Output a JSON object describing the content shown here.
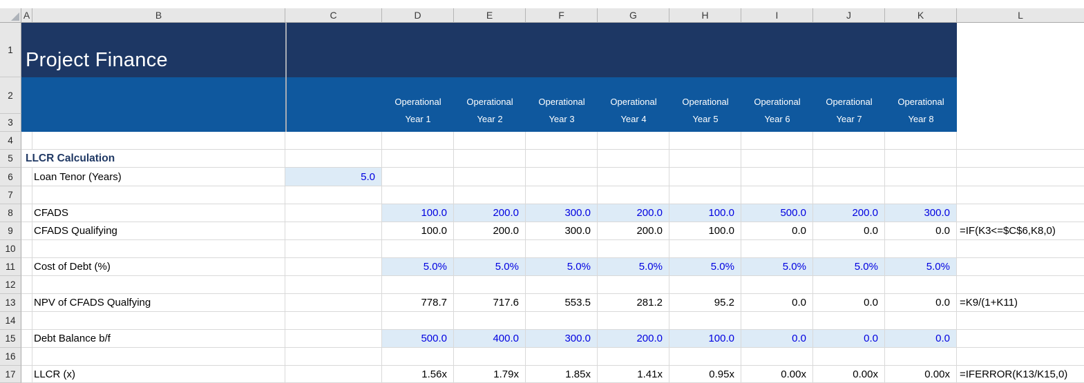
{
  "sheet": {
    "title": "Project Finance",
    "column_headers": [
      "A",
      "B",
      "C",
      "D",
      "E",
      "F",
      "G",
      "H",
      "I",
      "J",
      "K",
      "L"
    ],
    "row_numbers": [
      "1",
      "2",
      "3",
      "4",
      "5",
      "6",
      "7",
      "8",
      "9",
      "10",
      "11",
      "12",
      "13",
      "14",
      "15",
      "16",
      "17"
    ],
    "period_headers": [
      {
        "line1": "Operational",
        "line2": "Year 1"
      },
      {
        "line1": "Operational",
        "line2": "Year 2"
      },
      {
        "line1": "Operational",
        "line2": "Year 3"
      },
      {
        "line1": "Operational",
        "line2": "Year 4"
      },
      {
        "line1": "Operational",
        "line2": "Year 5"
      },
      {
        "line1": "Operational",
        "line2": "Year 6"
      },
      {
        "line1": "Operational",
        "line2": "Year 7"
      },
      {
        "line1": "Operational",
        "line2": "Year 8"
      }
    ],
    "rows": {
      "5": {
        "section": "LLCR Calculation"
      },
      "6": {
        "label": "Loan Tenor (Years)",
        "c_value": "5.0",
        "c_type": "input"
      },
      "8": {
        "label": "CFADS",
        "type": "input",
        "values": [
          "100.0",
          "200.0",
          "300.0",
          "200.0",
          "100.0",
          "500.0",
          "200.0",
          "300.0"
        ]
      },
      "9": {
        "label": "CFADS Qualifying",
        "type": "calc",
        "values": [
          "100.0",
          "200.0",
          "300.0",
          "200.0",
          "100.0",
          "0.0",
          "0.0",
          "0.0"
        ],
        "formula": "=IF(K3<=$C$6,K8,0)"
      },
      "11": {
        "label": "Cost of Debt (%)",
        "type": "input",
        "values": [
          "5.0%",
          "5.0%",
          "5.0%",
          "5.0%",
          "5.0%",
          "5.0%",
          "5.0%",
          "5.0%"
        ]
      },
      "13": {
        "label": "NPV of CFADS Qualfying",
        "type": "calc",
        "values": [
          "778.7",
          "717.6",
          "553.5",
          "281.2",
          "95.2",
          "0.0",
          "0.0",
          "0.0"
        ],
        "formula": "=K9/(1+K11)"
      },
      "15": {
        "label": "Debt Balance b/f",
        "type": "input",
        "values": [
          "500.0",
          "400.0",
          "300.0",
          "200.0",
          "100.0",
          "0.0",
          "0.0",
          "0.0"
        ]
      },
      "17": {
        "label": "LLCR (x)",
        "type": "calc",
        "values": [
          "1.56x",
          "1.79x",
          "1.85x",
          "1.41x",
          "0.95x",
          "0.00x",
          "0.00x",
          "0.00x"
        ],
        "formula": "=IFERROR(K13/K15,0)"
      }
    },
    "colors": {
      "banner_dark": "#1D3764",
      "banner_mid": "#0F589E",
      "input_fill": "#DDEBF7",
      "input_text": "#0000E0",
      "section_text": "#1F3864",
      "grid_line": "#D9D9D9"
    }
  }
}
